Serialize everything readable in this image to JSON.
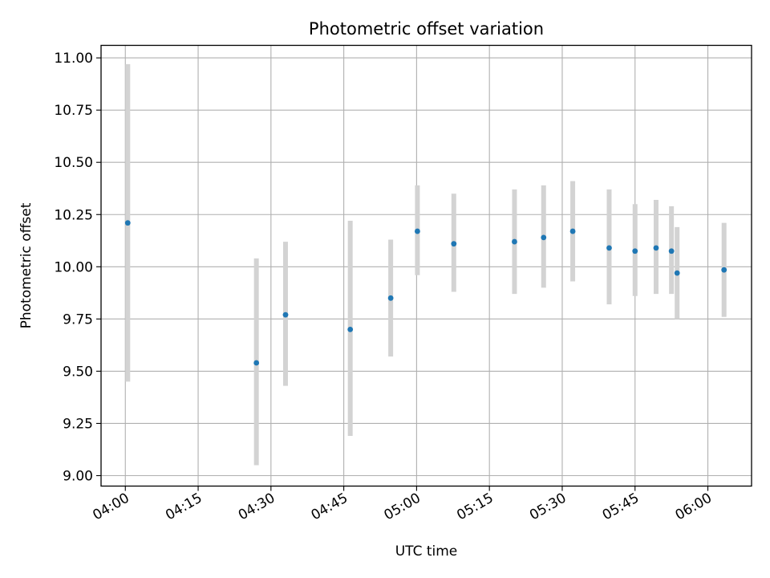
{
  "chart_data": {
    "type": "scatter",
    "title": "Photometric offset variation",
    "xlabel": "UTC time",
    "ylabel": "Photometric offset",
    "x_format": "HH:MM",
    "xlim": [
      "03:55",
      "06:09"
    ],
    "ylim": [
      8.95,
      11.06
    ],
    "x_ticks": [
      "04:00",
      "04:15",
      "04:30",
      "04:45",
      "05:00",
      "05:15",
      "05:30",
      "05:45",
      "06:00"
    ],
    "y_ticks": [
      "9.00",
      "9.25",
      "9.50",
      "9.75",
      "10.00",
      "10.25",
      "10.50",
      "10.75",
      "11.00"
    ],
    "grid": true,
    "point_color": "#1f77b4",
    "errorbar_color": "#d3d3d3",
    "series": [
      {
        "points": [
          {
            "x": "04:00:30",
            "y": 10.21,
            "ylo": 9.45,
            "yhi": 10.97
          },
          {
            "x": "04:27:00",
            "y": 9.54,
            "ylo": 9.05,
            "yhi": 10.04
          },
          {
            "x": "04:33:00",
            "y": 9.77,
            "ylo": 9.43,
            "yhi": 10.12
          },
          {
            "x": "04:46:20",
            "y": 9.7,
            "ylo": 9.19,
            "yhi": 10.22
          },
          {
            "x": "04:54:40",
            "y": 9.85,
            "ylo": 9.57,
            "yhi": 10.13
          },
          {
            "x": "05:00:10",
            "y": 10.17,
            "ylo": 9.96,
            "yhi": 10.39
          },
          {
            "x": "05:07:40",
            "y": 10.11,
            "ylo": 9.88,
            "yhi": 10.35
          },
          {
            "x": "05:20:10",
            "y": 10.12,
            "ylo": 9.87,
            "yhi": 10.37
          },
          {
            "x": "05:26:10",
            "y": 10.14,
            "ylo": 9.9,
            "yhi": 10.39
          },
          {
            "x": "05:32:10",
            "y": 10.17,
            "ylo": 9.93,
            "yhi": 10.41
          },
          {
            "x": "05:39:40",
            "y": 10.09,
            "ylo": 9.82,
            "yhi": 10.37
          },
          {
            "x": "05:45:00",
            "y": 10.075,
            "ylo": 9.86,
            "yhi": 10.3
          },
          {
            "x": "05:49:20",
            "y": 10.09,
            "ylo": 9.87,
            "yhi": 10.32
          },
          {
            "x": "05:52:30",
            "y": 10.075,
            "ylo": 9.87,
            "yhi": 10.29
          },
          {
            "x": "05:53:40",
            "y": 9.97,
            "ylo": 9.75,
            "yhi": 10.19
          },
          {
            "x": "06:03:20",
            "y": 9.985,
            "ylo": 9.76,
            "yhi": 10.21
          }
        ]
      }
    ]
  }
}
